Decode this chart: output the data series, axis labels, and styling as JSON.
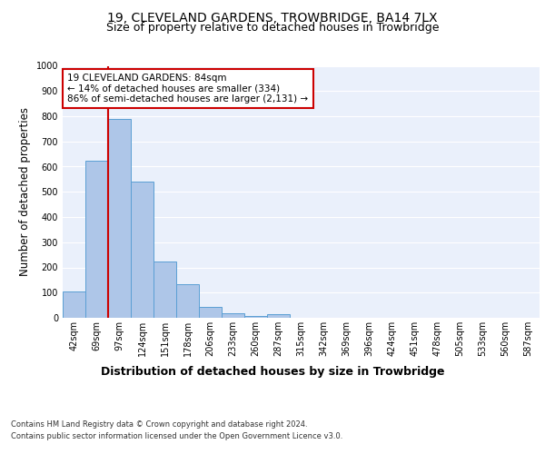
{
  "title": "19, CLEVELAND GARDENS, TROWBRIDGE, BA14 7LX",
  "subtitle": "Size of property relative to detached houses in Trowbridge",
  "xlabel": "Distribution of detached houses by size in Trowbridge",
  "ylabel": "Number of detached properties",
  "bar_labels": [
    "42sqm",
    "69sqm",
    "97sqm",
    "124sqm",
    "151sqm",
    "178sqm",
    "206sqm",
    "233sqm",
    "260sqm",
    "287sqm",
    "315sqm",
    "342sqm",
    "369sqm",
    "396sqm",
    "424sqm",
    "451sqm",
    "478sqm",
    "505sqm",
    "533sqm",
    "560sqm",
    "587sqm"
  ],
  "bar_values": [
    103,
    622,
    790,
    540,
    222,
    133,
    42,
    17,
    8,
    13,
    0,
    0,
    0,
    0,
    0,
    0,
    0,
    0,
    0,
    0,
    0
  ],
  "bar_color": "#aec6e8",
  "bar_edge_color": "#5a9fd4",
  "vline_x": 1.5,
  "vline_color": "#cc0000",
  "annotation_text": "19 CLEVELAND GARDENS: 84sqm\n← 14% of detached houses are smaller (334)\n86% of semi-detached houses are larger (2,131) →",
  "annotation_box_color": "#ffffff",
  "annotation_box_edge_color": "#cc0000",
  "ylim": [
    0,
    1000
  ],
  "yticks": [
    0,
    100,
    200,
    300,
    400,
    500,
    600,
    700,
    800,
    900,
    1000
  ],
  "plot_bg_color": "#eaf0fb",
  "grid_color": "#ffffff",
  "footer_line1": "Contains HM Land Registry data © Crown copyright and database right 2024.",
  "footer_line2": "Contains public sector information licensed under the Open Government Licence v3.0.",
  "title_fontsize": 10,
  "subtitle_fontsize": 9,
  "xlabel_fontsize": 9,
  "ylabel_fontsize": 8.5,
  "tick_fontsize": 7,
  "annotation_fontsize": 7.5,
  "footer_fontsize": 6
}
